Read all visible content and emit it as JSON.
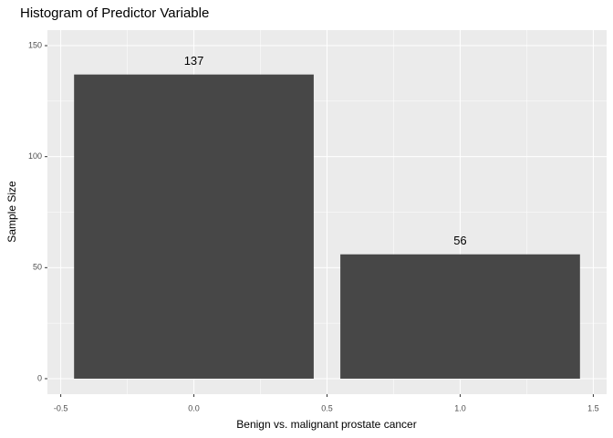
{
  "chart_data": {
    "type": "bar",
    "title": "Histogram of Predictor Variable",
    "x_label": "Benign vs. malignant prostate cancer",
    "y_label": "Sample Size",
    "x": [
      0,
      1
    ],
    "values": [
      137,
      56
    ],
    "color": "#474747",
    "xlim": [
      -0.55,
      1.55
    ],
    "xticks": [
      {
        "value": -0.5,
        "label": "-0.5"
      },
      {
        "value": 0,
        "label": "0.0"
      },
      {
        "value": 0.5,
        "label": "0.5"
      },
      {
        "value": 1,
        "label": "1.0"
      },
      {
        "value": 1.5,
        "label": "1.5"
      }
    ],
    "ylim": [
      -7,
      157
    ],
    "yticks": [
      0,
      50,
      100,
      150
    ],
    "grid": true
  }
}
